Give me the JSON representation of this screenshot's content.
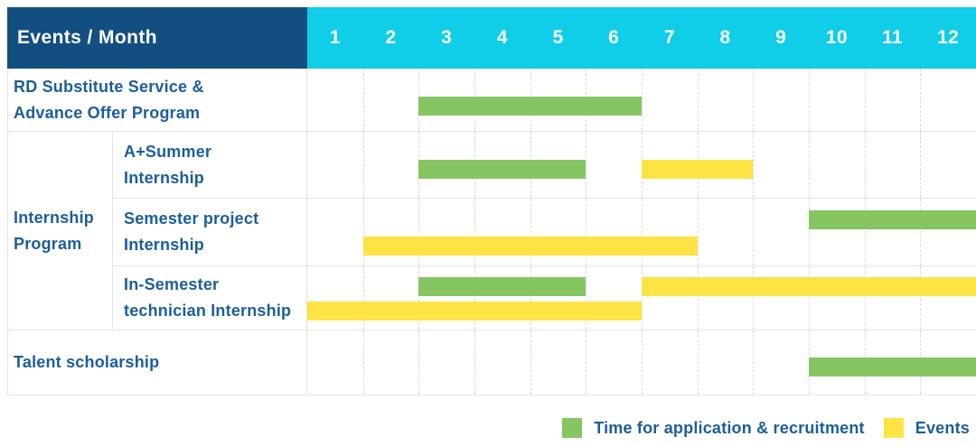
{
  "colors": {
    "header_bg": "#134e80",
    "months_bg": "#10cde8",
    "label_text": "#1b5e9b",
    "grid_solid": "#e4e4e4",
    "grid_dashed": "#d8d8d8",
    "recruitment": "#85c663",
    "events": "#fde343"
  },
  "chart_data": {
    "type": "gantt",
    "corner_header": "Events / Month",
    "x_axis": {
      "label": "Month",
      "range": [
        1,
        12
      ]
    },
    "x_ticks": [
      "1",
      "2",
      "3",
      "4",
      "5",
      "6",
      "7",
      "8",
      "9",
      "10",
      "11",
      "12"
    ],
    "legend": [
      {
        "key": "recruitment",
        "label": "Time for application & recruitment",
        "color": "#85c663"
      },
      {
        "key": "events",
        "label": "Events",
        "color": "#fde343"
      }
    ],
    "legend_position": "bottom-right",
    "group": {
      "label": "Internship Program",
      "label_lines": [
        "Internship",
        "Program"
      ]
    },
    "rows": [
      {
        "label": "RD Substitute Service & Advance Offer Program",
        "label_lines": [
          "RD Substitute Service &",
          "Advance Offer Program"
        ],
        "in_group": false,
        "bars": [
          {
            "type": "recruitment",
            "start_month": 3,
            "end_month": 6,
            "line": 0
          }
        ]
      },
      {
        "label": "A+Summer Internship",
        "label_lines": [
          "A+Summer",
          "Internship"
        ],
        "in_group": true,
        "bars": [
          {
            "type": "recruitment",
            "start_month": 3,
            "end_month": 5,
            "line": 0
          },
          {
            "type": "events",
            "start_month": 7,
            "end_month": 8,
            "line": 0
          }
        ]
      },
      {
        "label": "Semester project Internship",
        "label_lines": [
          "Semester project",
          "Internship"
        ],
        "in_group": true,
        "bars": [
          {
            "type": "recruitment",
            "start_month": 10,
            "end_month": 12,
            "line": 0
          },
          {
            "type": "events",
            "start_month": 2,
            "end_month": 7,
            "line": 1
          }
        ]
      },
      {
        "label": "In-Semester technician Internship",
        "label_lines": [
          "In-Semester",
          "technician Internship"
        ],
        "in_group": true,
        "bars": [
          {
            "type": "recruitment",
            "start_month": 3,
            "end_month": 5,
            "line": 0
          },
          {
            "type": "events",
            "start_month": 7,
            "end_month": 12,
            "line": 0
          },
          {
            "type": "events",
            "start_month": 1,
            "end_month": 6,
            "line": 1
          }
        ]
      },
      {
        "label": "Talent scholarship",
        "label_lines": [
          "Talent scholarship"
        ],
        "in_group": false,
        "bars": [
          {
            "type": "recruitment",
            "start_month": 10,
            "end_month": 12,
            "line": 0
          }
        ]
      }
    ]
  }
}
